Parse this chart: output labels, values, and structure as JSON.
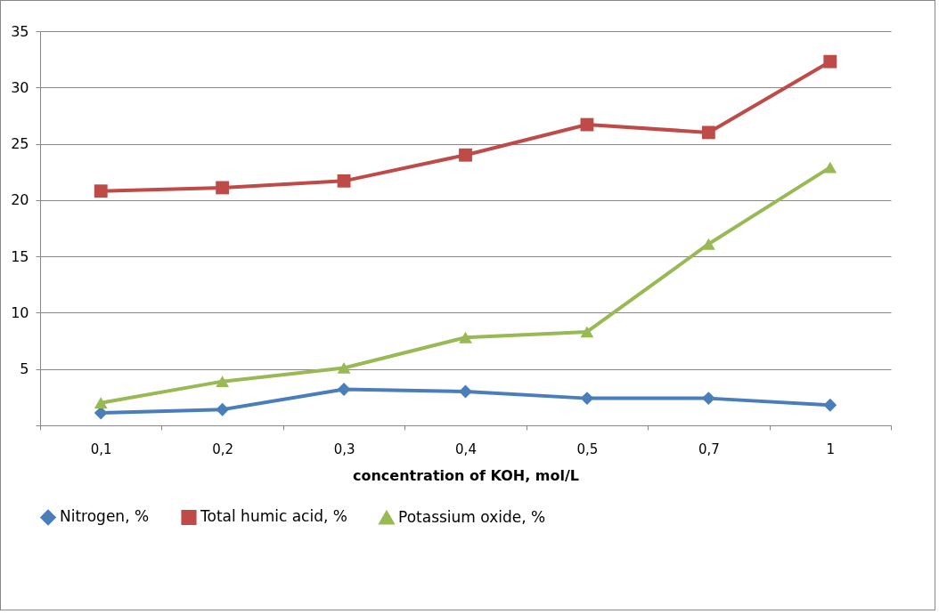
{
  "chart_data": {
    "type": "line",
    "xlabel": "concentration of KOH, mol/L",
    "categories": [
      "0,1",
      "0,2",
      "0,3",
      "0,4",
      "0,5",
      "0,7",
      "1"
    ],
    "series": [
      {
        "name": "Nitrogen, %",
        "color": "#4a7ebb",
        "marker": "diamond",
        "values": [
          1.1,
          1.4,
          3.2,
          3.0,
          2.4,
          2.4,
          1.8
        ]
      },
      {
        "name": "Total humic acid, %",
        "color": "#be4b48",
        "marker": "square",
        "values": [
          20.8,
          21.1,
          21.7,
          24.0,
          26.7,
          26.0,
          32.3
        ]
      },
      {
        "name": "Potassium oxide, %",
        "color": "#98b954",
        "marker": "triangle",
        "values": [
          2.0,
          3.9,
          5.1,
          7.8,
          8.3,
          16.1,
          22.9
        ]
      }
    ],
    "ylim": [
      0,
      35
    ],
    "yticks": [
      {
        "value": 0,
        "label": null
      },
      5,
      10,
      15,
      20,
      25,
      30,
      35
    ],
    "grid": "y",
    "legend": "bottom",
    "line_style": "solid"
  }
}
